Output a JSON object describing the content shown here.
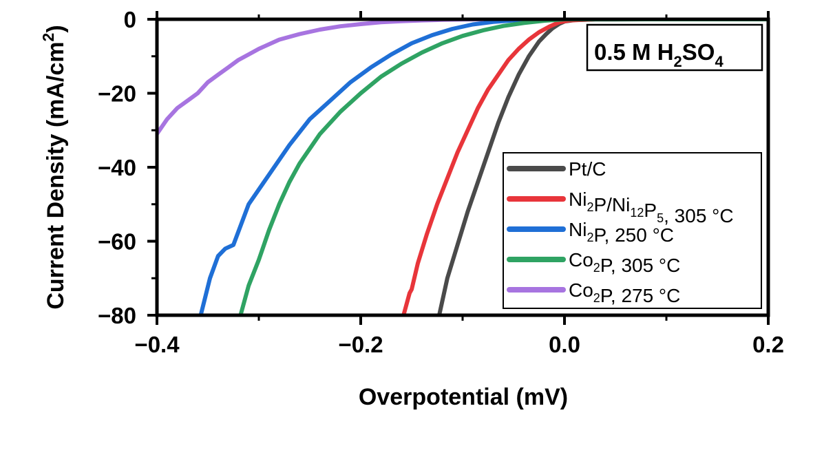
{
  "chart_data": {
    "type": "line",
    "xlabel": "Overpotential (mV)",
    "ylabel": "Current Density (mA/cm²)",
    "ylabel_parts": {
      "main": "Current Density (mA/cm",
      "sup": "2",
      "tail": ")"
    },
    "xlim": [
      -0.4,
      0.2
    ],
    "ylim": [
      -80,
      0
    ],
    "xticks": [
      -0.4,
      -0.2,
      0.0,
      0.2
    ],
    "xtick_labels": [
      "−0.4",
      "−0.2",
      "0.0",
      "0.2"
    ],
    "yticks": [
      0,
      -20,
      -40,
      -60,
      -80
    ],
    "ytick_labels": [
      "0",
      "−20",
      "−40",
      "−60",
      "−80"
    ],
    "grid": false,
    "legend_position": "bottom-right",
    "annotation": {
      "text": "0.5 M H2SO4",
      "parts": [
        "0.5 M H",
        "2",
        "SO",
        "4"
      ]
    },
    "series": [
      {
        "name": "Pt/C",
        "label_parts": [
          [
            "Pt/C",
            ""
          ]
        ],
        "color": "#4a4a4a",
        "x": [
          -0.123,
          -0.115,
          -0.105,
          -0.095,
          -0.085,
          -0.075,
          -0.065,
          -0.055,
          -0.045,
          -0.035,
          -0.025,
          -0.018,
          -0.012,
          -0.005,
          0.0,
          0.01,
          0.03,
          0.08,
          0.2
        ],
        "y": [
          -80,
          -70,
          -61,
          -52,
          -44,
          -36,
          -28,
          -21,
          -15,
          -10,
          -6,
          -4,
          -2.5,
          -1.2,
          -0.6,
          -0.2,
          -0.05,
          0,
          0
        ]
      },
      {
        "name": "Ni2P/Ni12P5, 305 °C",
        "label_parts": [
          [
            "Ni",
            "2"
          ],
          [
            "P/Ni",
            "12"
          ],
          [
            "P",
            "5"
          ],
          [
            ", 305 °C",
            ""
          ]
        ],
        "color": "#e8353a",
        "x": [
          -0.158,
          -0.152,
          -0.15,
          -0.144,
          -0.135,
          -0.125,
          -0.115,
          -0.105,
          -0.095,
          -0.085,
          -0.075,
          -0.065,
          -0.055,
          -0.045,
          -0.035,
          -0.025,
          -0.015,
          -0.005,
          0.005,
          0.03,
          0.2
        ],
        "y": [
          -80,
          -74,
          -73,
          -66,
          -58,
          -50,
          -43,
          -36,
          -30,
          -24,
          -19,
          -15,
          -11,
          -8,
          -5.5,
          -3.5,
          -2,
          -0.8,
          -0.3,
          0,
          0
        ]
      },
      {
        "name": "Ni2P, 250 °C",
        "label_parts": [
          [
            "Ni",
            "2"
          ],
          [
            "P, 250 °C",
            ""
          ]
        ],
        "color": "#1f6fd6",
        "x": [
          -0.357,
          -0.348,
          -0.34,
          -0.333,
          -0.325,
          -0.31,
          -0.29,
          -0.27,
          -0.25,
          -0.23,
          -0.21,
          -0.19,
          -0.17,
          -0.15,
          -0.13,
          -0.11,
          -0.09,
          -0.07,
          -0.05,
          -0.02,
          0.0,
          0.2
        ],
        "y": [
          -80,
          -70,
          -64,
          -62,
          -61,
          -50,
          -42,
          -34,
          -27,
          -22,
          -17,
          -13,
          -9.5,
          -6.5,
          -4.3,
          -2.6,
          -1.4,
          -0.7,
          -0.3,
          -0.1,
          0,
          0
        ]
      },
      {
        "name": "Co2P, 305 °C",
        "label_parts": [
          [
            "Co",
            "2"
          ],
          [
            "P, 305 °C",
            ""
          ]
        ],
        "color": "#2fa363",
        "x": [
          -0.318,
          -0.31,
          -0.3,
          -0.29,
          -0.28,
          -0.27,
          -0.26,
          -0.24,
          -0.22,
          -0.2,
          -0.18,
          -0.16,
          -0.14,
          -0.12,
          -0.1,
          -0.08,
          -0.06,
          -0.04,
          -0.02,
          0.0,
          0.2
        ],
        "y": [
          -80,
          -72,
          -65,
          -57,
          -50,
          -44,
          -39,
          -31,
          -25,
          -20,
          -15.5,
          -12,
          -9,
          -6.5,
          -4.5,
          -3,
          -1.8,
          -1,
          -0.4,
          0,
          0
        ]
      },
      {
        "name": "Co2P, 275 °C",
        "label_parts": [
          [
            "Co",
            "2"
          ],
          [
            "P, 275 °C",
            ""
          ]
        ],
        "color": "#a774e0",
        "x": [
          -0.4,
          -0.39,
          -0.38,
          -0.37,
          -0.36,
          -0.35,
          -0.34,
          -0.33,
          -0.32,
          -0.31,
          -0.3,
          -0.28,
          -0.26,
          -0.24,
          -0.22,
          -0.2,
          -0.18,
          -0.16,
          -0.14,
          -0.12,
          -0.1,
          -0.08
        ],
        "y": [
          -31,
          -27,
          -24,
          -22,
          -20,
          -17,
          -15,
          -13,
          -11,
          -9.5,
          -8,
          -5.5,
          -4,
          -2.8,
          -1.9,
          -1.3,
          -0.8,
          -0.5,
          -0.3,
          -0.15,
          -0.05,
          0
        ]
      }
    ]
  }
}
